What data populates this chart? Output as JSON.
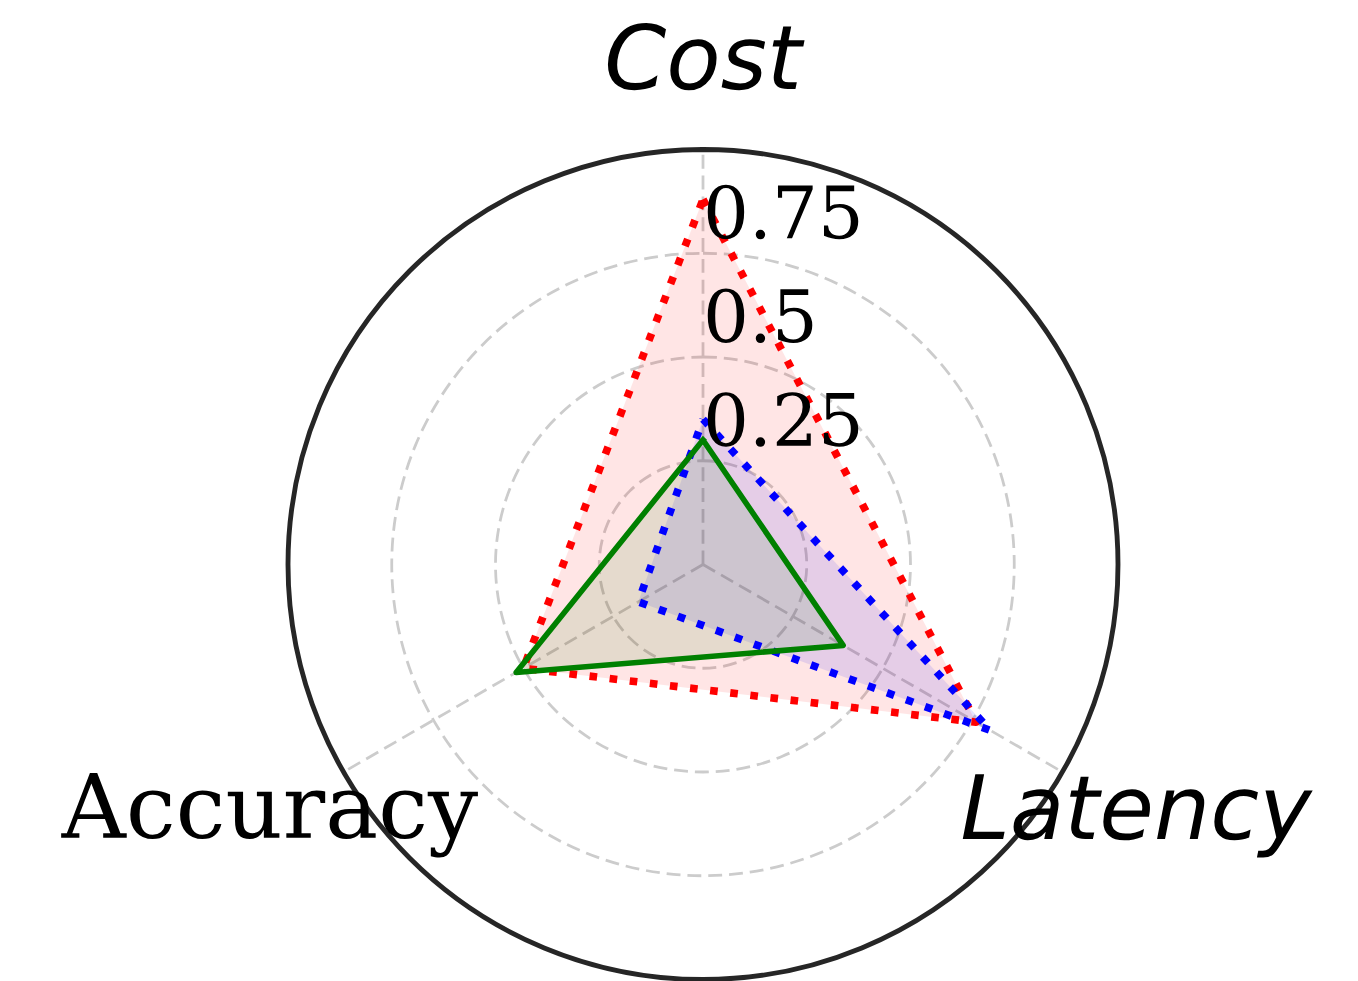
{
  "chart_data": {
    "type": "radar",
    "categories": [
      "Cost",
      "Latency",
      "Accuracy"
    ],
    "ylim": [
      0,
      1
    ],
    "yticks": [
      0.25,
      0.5,
      0.75
    ],
    "grid": true,
    "series": [
      {
        "color": "#ff0000",
        "line_style": "dotted",
        "values": [
          0.88,
          0.76,
          0.5
        ]
      },
      {
        "color": "#0000ff",
        "line_style": "dotted",
        "values": [
          0.35,
          0.8,
          0.18
        ]
      },
      {
        "color": "#008000",
        "line_style": "solid",
        "values": [
          0.3,
          0.39,
          0.52
        ]
      }
    ]
  }
}
